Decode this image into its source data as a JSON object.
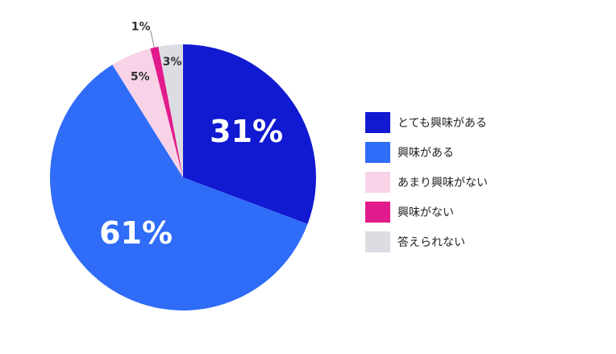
{
  "chart_data": {
    "type": "pie",
    "slices": [
      {
        "label": "とても興味がある",
        "value": 31,
        "display": "31%",
        "color": "#1119d1"
      },
      {
        "label": "興味がある",
        "value": 61,
        "display": "61%",
        "color": "#2f6cf7"
      },
      {
        "label": "あまり興味がない",
        "value": 5,
        "display": "5%",
        "color": "#f8d3e8"
      },
      {
        "label": "興味がない",
        "value": 1,
        "display": "1%",
        "color": "#e21b8c"
      },
      {
        "label": "答えられない",
        "value": 3,
        "display": "3%",
        "color": "#dcdde3"
      }
    ],
    "legend_position": "right"
  }
}
